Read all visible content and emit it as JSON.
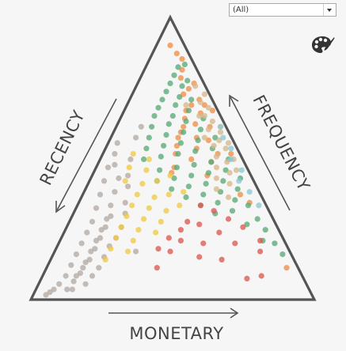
{
  "filter": {
    "selected": "(All)"
  },
  "toolbar": {
    "palette_icon": "palette-icon"
  },
  "chart_data": {
    "type": "scatter",
    "subtype": "ternary",
    "axes": {
      "left_label": "RECENCY",
      "right_label": "FREQUENCY",
      "bottom_label": "MONETARY"
    },
    "colors": {
      "orange": "#f0904a",
      "green": "#5aaa78",
      "tan": "#d7b98c",
      "gray": "#b5aba4",
      "yellow": "#efca45",
      "red": "#df5a52",
      "cyan": "#8cc9d3"
    },
    "series": [
      {
        "color_key": "orange",
        "points": [
          {
            "r": 0.04,
            "f": 0.92
          },
          {
            "r": 0.03,
            "f": 0.89
          },
          {
            "r": 0.02,
            "f": 0.87
          },
          {
            "r": 0.04,
            "f": 0.83
          },
          {
            "r": 0.06,
            "f": 0.8
          },
          {
            "r": 0.02,
            "f": 0.78
          },
          {
            "r": 0.05,
            "f": 0.76
          },
          {
            "r": 0.08,
            "f": 0.74
          },
          {
            "r": 0.03,
            "f": 0.72
          },
          {
            "r": 0.07,
            "f": 0.7
          },
          {
            "r": 0.1,
            "f": 0.68
          },
          {
            "r": 0.05,
            "f": 0.67
          },
          {
            "r": 0.12,
            "f": 0.65
          },
          {
            "r": 0.09,
            "f": 0.63
          },
          {
            "r": 0.14,
            "f": 0.62
          },
          {
            "r": 0.04,
            "f": 0.62
          },
          {
            "r": 0.16,
            "f": 0.6
          },
          {
            "r": 0.11,
            "f": 0.58
          },
          {
            "r": 0.18,
            "f": 0.58
          },
          {
            "r": 0.07,
            "f": 0.57
          },
          {
            "r": 0.2,
            "f": 0.55
          },
          {
            "r": 0.13,
            "f": 0.54
          },
          {
            "r": 0.22,
            "f": 0.52
          },
          {
            "r": 0.17,
            "f": 0.5
          },
          {
            "r": 0.25,
            "f": 0.47
          },
          {
            "r": 0.1,
            "f": 0.49
          },
          {
            "r": 0.14,
            "f": 0.44
          },
          {
            "r": 0.06,
            "f": 0.52
          },
          {
            "r": 0.05,
            "f": 0.37
          },
          {
            "r": 0.03,
            "f": 0.34
          },
          {
            "r": 0.27,
            "f": 0.45
          },
          {
            "r": 0.02,
            "f": 0.7
          },
          {
            "r": 0.0,
            "f": 0.68
          },
          {
            "r": 0.01,
            "f": 0.52
          },
          {
            "r": 0.01,
            "f": 0.1
          }
        ]
      },
      {
        "color_key": "green",
        "points": [
          {
            "r": 0.02,
            "f": 0.85
          },
          {
            "r": 0.05,
            "f": 0.84
          },
          {
            "r": 0.08,
            "f": 0.81
          },
          {
            "r": 0.04,
            "f": 0.79
          },
          {
            "r": 0.11,
            "f": 0.78
          },
          {
            "r": 0.07,
            "f": 0.77
          },
          {
            "r": 0.14,
            "f": 0.75
          },
          {
            "r": 0.1,
            "f": 0.73
          },
          {
            "r": 0.17,
            "f": 0.72
          },
          {
            "r": 0.06,
            "f": 0.72
          },
          {
            "r": 0.13,
            "f": 0.7
          },
          {
            "r": 0.2,
            "f": 0.69
          },
          {
            "r": 0.09,
            "f": 0.68
          },
          {
            "r": 0.16,
            "f": 0.66
          },
          {
            "r": 0.23,
            "f": 0.66
          },
          {
            "r": 0.05,
            "f": 0.65
          },
          {
            "r": 0.12,
            "f": 0.64
          },
          {
            "r": 0.19,
            "f": 0.63
          },
          {
            "r": 0.26,
            "f": 0.62
          },
          {
            "r": 0.08,
            "f": 0.61
          },
          {
            "r": 0.15,
            "f": 0.6
          },
          {
            "r": 0.22,
            "f": 0.59
          },
          {
            "r": 0.29,
            "f": 0.58
          },
          {
            "r": 0.04,
            "f": 0.58
          },
          {
            "r": 0.11,
            "f": 0.57
          },
          {
            "r": 0.18,
            "f": 0.56
          },
          {
            "r": 0.25,
            "f": 0.55
          },
          {
            "r": 0.32,
            "f": 0.54
          },
          {
            "r": 0.07,
            "f": 0.54
          },
          {
            "r": 0.14,
            "f": 0.53
          },
          {
            "r": 0.21,
            "f": 0.52
          },
          {
            "r": 0.28,
            "f": 0.51
          },
          {
            "r": 0.35,
            "f": 0.5
          },
          {
            "r": 0.03,
            "f": 0.5
          },
          {
            "r": 0.1,
            "f": 0.49
          },
          {
            "r": 0.17,
            "f": 0.48
          },
          {
            "r": 0.24,
            "f": 0.47
          },
          {
            "r": 0.31,
            "f": 0.46
          },
          {
            "r": 0.06,
            "f": 0.46
          },
          {
            "r": 0.13,
            "f": 0.45
          },
          {
            "r": 0.2,
            "f": 0.44
          },
          {
            "r": 0.27,
            "f": 0.43
          },
          {
            "r": 0.34,
            "f": 0.42
          },
          {
            "r": 0.02,
            "f": 0.43
          },
          {
            "r": 0.09,
            "f": 0.42
          },
          {
            "r": 0.16,
            "f": 0.41
          },
          {
            "r": 0.23,
            "f": 0.4
          },
          {
            "r": 0.3,
            "f": 0.39
          },
          {
            "r": 0.05,
            "f": 0.39
          },
          {
            "r": 0.12,
            "f": 0.38
          },
          {
            "r": 0.19,
            "f": 0.37
          },
          {
            "r": 0.26,
            "f": 0.36
          },
          {
            "r": 0.08,
            "f": 0.35
          },
          {
            "r": 0.15,
            "f": 0.34
          },
          {
            "r": 0.22,
            "f": 0.33
          },
          {
            "r": 0.04,
            "f": 0.33
          },
          {
            "r": 0.11,
            "f": 0.31
          },
          {
            "r": 0.18,
            "f": 0.3
          },
          {
            "r": 0.03,
            "f": 0.28
          },
          {
            "r": 0.08,
            "f": 0.26
          },
          {
            "r": 0.02,
            "f": 0.24
          },
          {
            "r": 0.05,
            "f": 0.2
          },
          {
            "r": 0.01,
            "f": 0.19
          },
          {
            "r": 0.0,
            "f": 0.15
          }
        ]
      },
      {
        "color_key": "tan",
        "points": [
          {
            "r": 0.02,
            "f": 0.77
          },
          {
            "r": 0.0,
            "f": 0.74
          },
          {
            "r": 0.03,
            "f": 0.71
          },
          {
            "r": 0.01,
            "f": 0.69
          },
          {
            "r": 0.04,
            "f": 0.66
          },
          {
            "r": 0.02,
            "f": 0.64
          },
          {
            "r": 0.05,
            "f": 0.61
          },
          {
            "r": 0.01,
            "f": 0.6
          },
          {
            "r": 0.03,
            "f": 0.57
          },
          {
            "r": 0.06,
            "f": 0.55
          },
          {
            "r": 0.02,
            "f": 0.54
          },
          {
            "r": 0.07,
            "f": 0.51
          },
          {
            "r": 0.04,
            "f": 0.49
          },
          {
            "r": 0.09,
            "f": 0.47
          },
          {
            "r": 0.05,
            "f": 0.45
          },
          {
            "r": 0.11,
            "f": 0.43
          },
          {
            "r": 0.07,
            "f": 0.41
          },
          {
            "r": 0.13,
            "f": 0.39
          },
          {
            "r": 0.02,
            "f": 0.46
          },
          {
            "r": 0.1,
            "f": 0.36
          },
          {
            "r": 0.0,
            "f": 0.62
          },
          {
            "r": 0.06,
            "f": 0.66
          },
          {
            "r": 0.09,
            "f": 0.7
          },
          {
            "r": 0.01,
            "f": 0.5
          },
          {
            "r": 0.08,
            "f": 0.58
          },
          {
            "r": 0.0,
            "f": 0.56
          }
        ]
      },
      {
        "color_key": "cyan",
        "points": [
          {
            "r": 0.0,
            "f": 0.62
          },
          {
            "r": 0.01,
            "f": 0.58
          },
          {
            "r": 0.0,
            "f": 0.54
          },
          {
            "r": 0.02,
            "f": 0.5
          },
          {
            "r": 0.0,
            "f": 0.46
          },
          {
            "r": 0.03,
            "f": 0.42
          },
          {
            "r": 0.01,
            "f": 0.38
          },
          {
            "r": 0.0,
            "f": 0.33
          }
        ]
      },
      {
        "color_key": "gray",
        "points": [
          {
            "r": 0.45,
            "f": 0.52
          },
          {
            "r": 0.5,
            "f": 0.47
          },
          {
            "r": 0.48,
            "f": 0.43
          },
          {
            "r": 0.54,
            "f": 0.42
          },
          {
            "r": 0.52,
            "f": 0.38
          },
          {
            "r": 0.58,
            "f": 0.37
          },
          {
            "r": 0.56,
            "f": 0.33
          },
          {
            "r": 0.62,
            "f": 0.32
          },
          {
            "r": 0.6,
            "f": 0.28
          },
          {
            "r": 0.66,
            "f": 0.27
          },
          {
            "r": 0.64,
            "f": 0.24
          },
          {
            "r": 0.7,
            "f": 0.23
          },
          {
            "r": 0.68,
            "f": 0.2
          },
          {
            "r": 0.74,
            "f": 0.19
          },
          {
            "r": 0.72,
            "f": 0.16
          },
          {
            "r": 0.78,
            "f": 0.15
          },
          {
            "r": 0.76,
            "f": 0.12
          },
          {
            "r": 0.82,
            "f": 0.11
          },
          {
            "r": 0.8,
            "f": 0.08
          },
          {
            "r": 0.86,
            "f": 0.07
          },
          {
            "r": 0.84,
            "f": 0.05
          },
          {
            "r": 0.9,
            "f": 0.04
          },
          {
            "r": 0.88,
            "f": 0.02
          },
          {
            "r": 0.93,
            "f": 0.02
          },
          {
            "r": 0.95,
            "f": 0.01
          },
          {
            "r": 0.97,
            "f": 0.0
          },
          {
            "r": 0.62,
            "f": 0.25
          },
          {
            "r": 0.58,
            "f": 0.29
          },
          {
            "r": 0.66,
            "f": 0.21
          },
          {
            "r": 0.7,
            "f": 0.17
          },
          {
            "r": 0.74,
            "f": 0.13
          },
          {
            "r": 0.78,
            "f": 0.1
          },
          {
            "r": 0.82,
            "f": 0.07
          },
          {
            "r": 0.6,
            "f": 0.21
          },
          {
            "r": 0.56,
            "f": 0.25
          },
          {
            "r": 0.64,
            "f": 0.18
          },
          {
            "r": 0.68,
            "f": 0.14
          },
          {
            "r": 0.72,
            "f": 0.1
          },
          {
            "r": 0.76,
            "f": 0.07
          },
          {
            "r": 0.8,
            "f": 0.04
          },
          {
            "r": 0.47,
            "f": 0.48
          },
          {
            "r": 0.42,
            "f": 0.56
          },
          {
            "r": 0.4,
            "f": 0.5
          },
          {
            "r": 0.52,
            "f": 0.3
          },
          {
            "r": 0.5,
            "f": 0.34
          },
          {
            "r": 0.46,
            "f": 0.4
          },
          {
            "r": 0.44,
            "f": 0.44
          },
          {
            "r": 0.86,
            "f": 0.02
          },
          {
            "r": 0.34,
            "f": 0.58
          },
          {
            "r": 0.3,
            "f": 0.62
          },
          {
            "r": 0.55,
            "f": 0.16
          }
        ]
      },
      {
        "color_key": "yellow",
        "points": [
          {
            "r": 0.38,
            "f": 0.52
          },
          {
            "r": 0.42,
            "f": 0.47
          },
          {
            "r": 0.36,
            "f": 0.46
          },
          {
            "r": 0.46,
            "f": 0.42
          },
          {
            "r": 0.4,
            "f": 0.41
          },
          {
            "r": 0.34,
            "f": 0.42
          },
          {
            "r": 0.44,
            "f": 0.37
          },
          {
            "r": 0.38,
            "f": 0.36
          },
          {
            "r": 0.48,
            "f": 0.33
          },
          {
            "r": 0.42,
            "f": 0.32
          },
          {
            "r": 0.32,
            "f": 0.37
          },
          {
            "r": 0.36,
            "f": 0.31
          },
          {
            "r": 0.52,
            "f": 0.29
          },
          {
            "r": 0.46,
            "f": 0.28
          },
          {
            "r": 0.4,
            "f": 0.27
          },
          {
            "r": 0.3,
            "f": 0.33
          },
          {
            "r": 0.56,
            "f": 0.25
          },
          {
            "r": 0.5,
            "f": 0.24
          },
          {
            "r": 0.44,
            "f": 0.23
          },
          {
            "r": 0.6,
            "f": 0.21
          },
          {
            "r": 0.54,
            "f": 0.2
          },
          {
            "r": 0.64,
            "f": 0.17
          },
          {
            "r": 0.58,
            "f": 0.16
          },
          {
            "r": 0.68,
            "f": 0.13
          },
          {
            "r": 0.33,
            "f": 0.5
          },
          {
            "r": 0.28,
            "f": 0.44
          },
          {
            "r": 0.26,
            "f": 0.38
          }
        ]
      },
      {
        "color_key": "red",
        "points": [
          {
            "r": 0.22,
            "f": 0.33
          },
          {
            "r": 0.18,
            "f": 0.31
          },
          {
            "r": 0.14,
            "f": 0.28
          },
          {
            "r": 0.3,
            "f": 0.27
          },
          {
            "r": 0.26,
            "f": 0.26
          },
          {
            "r": 0.1,
            "f": 0.25
          },
          {
            "r": 0.34,
            "f": 0.24
          },
          {
            "r": 0.2,
            "f": 0.23
          },
          {
            "r": 0.4,
            "f": 0.21
          },
          {
            "r": 0.36,
            "f": 0.2
          },
          {
            "r": 0.28,
            "f": 0.19
          },
          {
            "r": 0.46,
            "f": 0.17
          },
          {
            "r": 0.16,
            "f": 0.19
          },
          {
            "r": 0.24,
            "f": 0.13
          },
          {
            "r": 0.5,
            "f": 0.1
          },
          {
            "r": 0.18,
            "f": 0.06
          },
          {
            "r": 0.12,
            "f": 0.07
          },
          {
            "r": 0.08,
            "f": 0.16
          },
          {
            "r": 0.06,
            "f": 0.2
          },
          {
            "r": 0.32,
            "f": 0.14
          },
          {
            "r": 0.42,
            "f": 0.16
          }
        ]
      }
    ]
  }
}
